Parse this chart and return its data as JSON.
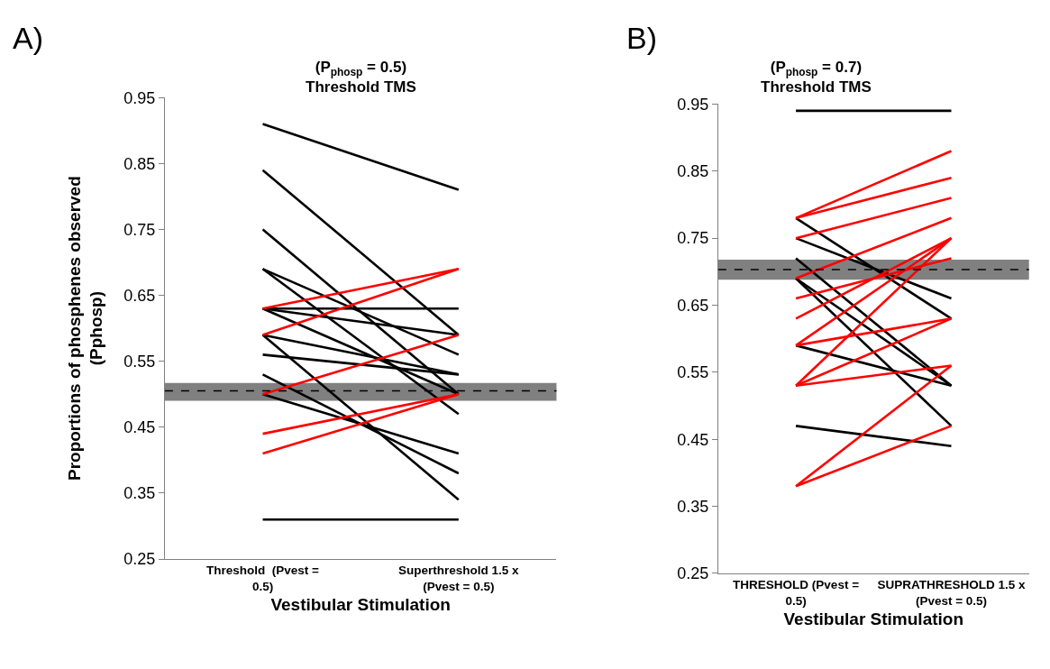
{
  "chart_data": [
    {
      "type": "line",
      "title": "(P$_{phosp}$ = 0.5)\nThreshold TMS",
      "xlabel": "Vestibular Stimulation",
      "ylabel": "Proportions of phosphenes observed (Pphosp)",
      "annotations": [
        "A)"
      ],
      "categories": [
        "Threshold  (Pvest = 0.5)",
        "Superthreshold 1.5 x (Pvest = 0.5)"
      ],
      "ylim": [
        0.25,
        0.95
      ],
      "yticks": [
        0.25,
        0.35,
        0.45,
        0.55,
        0.65,
        0.75,
        0.85,
        0.95
      ],
      "marker": "none",
      "line_style": "solid",
      "ref_lines": [
        {
          "axis": "y",
          "value": 0.505,
          "color": "#000000",
          "line_style": "dashed"
        }
      ],
      "bands": [
        {
          "axis": "y",
          "from": 0.49,
          "to": 0.517,
          "color": "#808080"
        }
      ],
      "series": [
        {
          "color": "#000000",
          "values": [
            0.91,
            0.81
          ]
        },
        {
          "color": "#000000",
          "values": [
            0.84,
            0.59
          ]
        },
        {
          "color": "#000000",
          "values": [
            0.75,
            0.5
          ]
        },
        {
          "color": "#000000",
          "values": [
            0.69,
            0.56
          ]
        },
        {
          "color": "#000000",
          "values": [
            0.69,
            0.47
          ]
        },
        {
          "color": "#000000",
          "values": [
            0.63,
            0.63
          ]
        },
        {
          "color": "#000000",
          "values": [
            0.63,
            0.59
          ]
        },
        {
          "color": "#000000",
          "values": [
            0.63,
            0.5
          ]
        },
        {
          "color": "#000000",
          "values": [
            0.59,
            0.53
          ]
        },
        {
          "color": "#000000",
          "values": [
            0.59,
            0.34
          ]
        },
        {
          "color": "#000000",
          "values": [
            0.56,
            0.53
          ]
        },
        {
          "color": "#000000",
          "values": [
            0.53,
            0.38
          ]
        },
        {
          "color": "#000000",
          "values": [
            0.5,
            0.41
          ]
        },
        {
          "color": "#000000",
          "values": [
            0.31,
            0.31
          ]
        },
        {
          "color": "#ff0000",
          "values": [
            0.63,
            0.69
          ]
        },
        {
          "color": "#ff0000",
          "values": [
            0.59,
            0.69
          ]
        },
        {
          "color": "#ff0000",
          "values": [
            0.5,
            0.59
          ]
        },
        {
          "color": "#ff0000",
          "values": [
            0.44,
            0.5
          ]
        },
        {
          "color": "#ff0000",
          "values": [
            0.41,
            0.5
          ]
        }
      ]
    },
    {
      "type": "line",
      "title": "(P$_{phosp}$ = 0.7)\nThreshold TMS",
      "xlabel": "Vestibular Stimulation",
      "annotations": [
        "B)"
      ],
      "categories": [
        "THRESHOLD (Pvest = 0.5)",
        "SUPRATHRESHOLD 1.5 x (Pvest = 0.5)"
      ],
      "ylim": [
        0.25,
        0.95
      ],
      "yticks": [
        0.25,
        0.35,
        0.45,
        0.55,
        0.65,
        0.75,
        0.85,
        0.95
      ],
      "marker": "none",
      "line_style": "solid",
      "ref_lines": [
        {
          "axis": "y",
          "value": 0.703,
          "color": "#000000",
          "line_style": "dashed"
        }
      ],
      "bands": [
        {
          "axis": "y",
          "from": 0.688,
          "to": 0.718,
          "color": "#808080"
        }
      ],
      "series": [
        {
          "color": "#000000",
          "values": [
            0.94,
            0.94
          ]
        },
        {
          "color": "#000000",
          "values": [
            0.78,
            0.63
          ]
        },
        {
          "color": "#000000",
          "values": [
            0.75,
            0.66
          ]
        },
        {
          "color": "#000000",
          "values": [
            0.72,
            0.53
          ]
        },
        {
          "color": "#000000",
          "values": [
            0.69,
            0.53
          ]
        },
        {
          "color": "#000000",
          "values": [
            0.69,
            0.47
          ]
        },
        {
          "color": "#000000",
          "values": [
            0.59,
            0.53
          ]
        },
        {
          "color": "#000000",
          "values": [
            0.47,
            0.44
          ]
        },
        {
          "color": "#ff0000",
          "values": [
            0.78,
            0.88
          ]
        },
        {
          "color": "#ff0000",
          "values": [
            0.78,
            0.84
          ]
        },
        {
          "color": "#ff0000",
          "values": [
            0.75,
            0.81
          ]
        },
        {
          "color": "#ff0000",
          "values": [
            0.69,
            0.78
          ]
        },
        {
          "color": "#ff0000",
          "values": [
            0.66,
            0.72
          ]
        },
        {
          "color": "#ff0000",
          "values": [
            0.63,
            0.75
          ]
        },
        {
          "color": "#ff0000",
          "values": [
            0.59,
            0.75
          ]
        },
        {
          "color": "#ff0000",
          "values": [
            0.59,
            0.63
          ]
        },
        {
          "color": "#ff0000",
          "values": [
            0.53,
            0.75
          ]
        },
        {
          "color": "#ff0000",
          "values": [
            0.53,
            0.63
          ]
        },
        {
          "color": "#ff0000",
          "values": [
            0.53,
            0.56
          ]
        },
        {
          "color": "#ff0000",
          "values": [
            0.38,
            0.56
          ]
        },
        {
          "color": "#ff0000",
          "values": [
            0.38,
            0.47
          ]
        }
      ]
    }
  ]
}
